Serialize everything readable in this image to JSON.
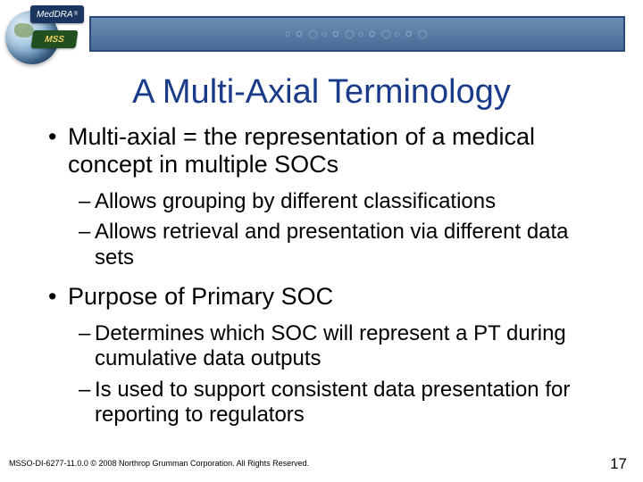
{
  "logo": {
    "brand": "MedDRA",
    "sub": "MSS"
  },
  "title": "A Multi-Axial Terminology",
  "bullets": [
    {
      "text": "Multi-axial = the representation of a medical concept in multiple SOCs",
      "children": [
        "Allows grouping by different classifications",
        "Allows retrieval and presentation via different data sets"
      ]
    },
    {
      "text": "Purpose of Primary SOC",
      "children": [
        "Determines which SOC will represent a PT during cumulative data outputs",
        "Is used to support consistent data presentation for reporting to regulators"
      ]
    }
  ],
  "footer": "MSSO-DI-6277-11.0.0 © 2008 Northrop Grumman Corporation. All Rights Reserved.",
  "page_number": "17",
  "colors": {
    "title_color": "#1a3a8a",
    "band_border": "#2a4a75",
    "band_fill_top": "#6a8db5",
    "band_fill_bottom": "#4a6a95",
    "body_text": "#000000",
    "background": "#ffffff"
  },
  "typography": {
    "title_size_pt": 28,
    "bullet1_size_pt": 20,
    "bullet2_size_pt": 18,
    "footer_size_pt": 7,
    "pagenum_size_pt": 13,
    "font_family": "Arial"
  }
}
